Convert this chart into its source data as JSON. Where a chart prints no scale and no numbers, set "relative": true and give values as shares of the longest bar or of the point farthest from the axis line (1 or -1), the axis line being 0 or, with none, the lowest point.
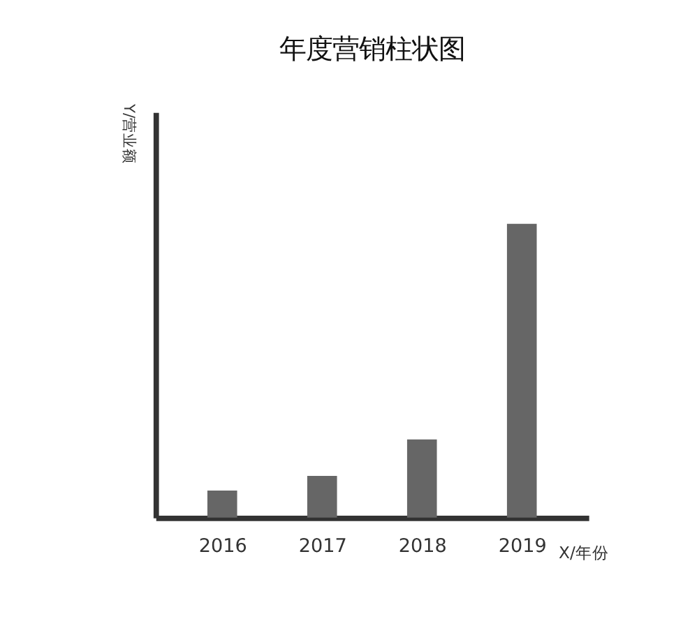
{
  "chart_data": {
    "type": "bar",
    "title": "年度营销柱状图",
    "xlabel": "X/年份",
    "ylabel": "Y/营业额",
    "categories": [
      "2016",
      "2017",
      "2018",
      "2019"
    ],
    "values": [
      0.092,
      0.142,
      0.266,
      1
    ],
    "color": "#666666",
    "relative": true,
    "grid": false
  }
}
